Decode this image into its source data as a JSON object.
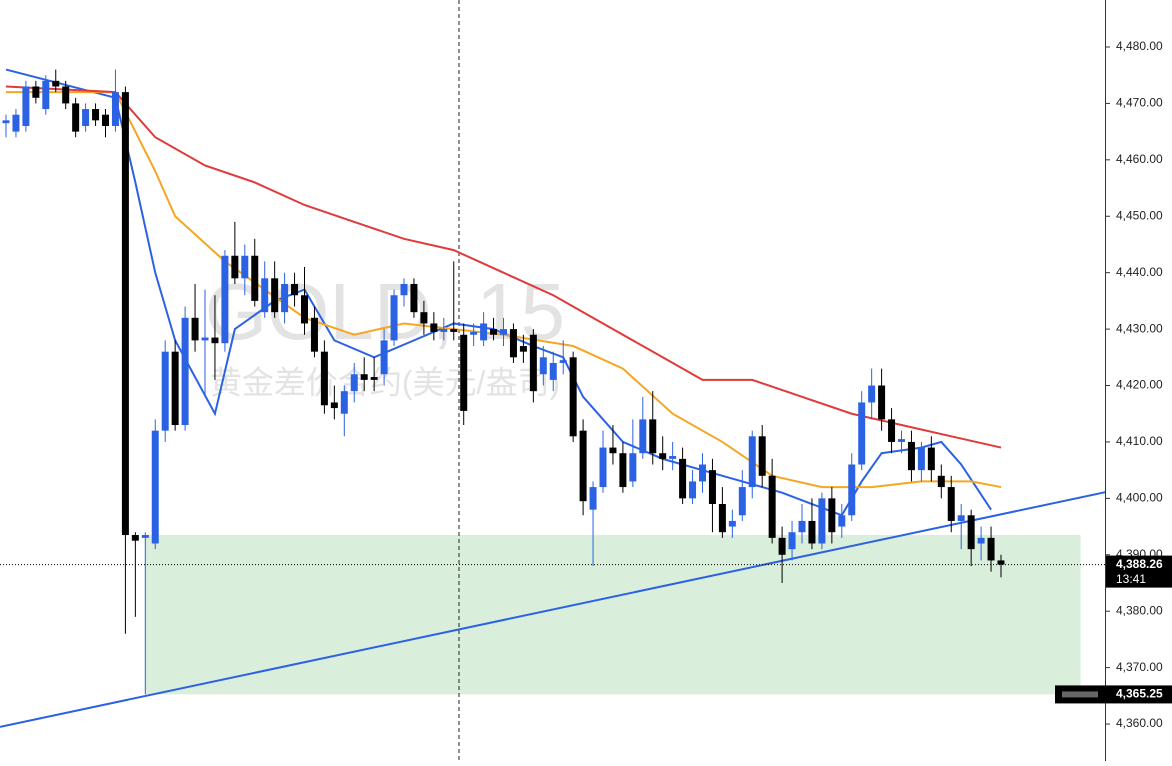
{
  "chart_data": {
    "type": "candlestick",
    "title": "GOLD, 15",
    "subtitle": "黄金差价合约(美元/盎司)",
    "up_color": "#2b62e3",
    "down_color": "#000000",
    "open": [
      4466.5,
      4465,
      4466,
      4473,
      4469,
      4474,
      4473,
      4470,
      4466,
      4469,
      4468,
      4466,
      4472,
      4393.5,
      4393,
      4392,
      4412,
      4426,
      4413,
      4432,
      4428,
      4428.5,
      4427.5,
      4443,
      4439,
      4443,
      4433,
      4439,
      4433,
      4438,
      4436,
      4432,
      4426,
      4417,
      4415,
      4419,
      4422,
      4421.5,
      4422,
      4428,
      4436,
      4438,
      4433,
      4431,
      4429.5,
      4430,
      4429,
      4429,
      4428,
      4430,
      4429,
      4430,
      4427,
      4429,
      4422,
      4421,
      4424,
      4425,
      4412,
      4398,
      4402,
      4409,
      4408,
      4403,
      4408,
      4414,
      4408,
      4407,
      4407,
      4400,
      4403,
      4405,
      4399,
      4395,
      4397,
      4402,
      4411,
      4404,
      4393,
      4391,
      4394,
      4396,
      4392,
      4400,
      4395,
      4397,
      4406,
      4417,
      4420,
      4414,
      4410,
      4410,
      4405,
      4409,
      4404,
      4402,
      4396,
      4397,
      4392,
      4393,
      4389
    ],
    "high": [
      4468,
      4469,
      4474,
      4474,
      4475,
      4476,
      4474,
      4471,
      4470,
      4470,
      4469,
      4476,
      4473,
      4394,
      4394,
      4414,
      4428,
      4428,
      4434,
      4438,
      4437,
      4436,
      4444,
      4449,
      4445,
      4446,
      4442,
      4442,
      4440,
      4440,
      4441,
      4434,
      4428,
      4420,
      4420,
      4424,
      4425,
      4425,
      4430,
      4437,
      4439,
      4439,
      4435,
      4433,
      4432,
      4442,
      4431,
      4431,
      4433,
      4432,
      4432,
      4431,
      4429,
      4430,
      4427,
      4426,
      4428,
      4426,
      4414,
      4403,
      4412,
      4413,
      4410,
      4414,
      4418,
      4419,
      4411,
      4410,
      4409,
      4405,
      4408,
      4407,
      4402,
      4398,
      4405,
      4412,
      4413,
      4407,
      4395,
      4396,
      4399,
      4400,
      4401,
      4402,
      4399,
      4408,
      4419,
      4423,
      4423,
      4416,
      4412,
      4412,
      4410,
      4411,
      4406,
      4404,
      4399,
      4398,
      4395,
      4395,
      4390
    ],
    "low": [
      4464,
      4464,
      4465,
      4470,
      4468,
      4472,
      4469,
      4464,
      4465,
      4466,
      4464,
      4465,
      4376,
      4379,
      4365.25,
      4391,
      4410,
      4412,
      4412,
      4426,
      4418,
      4421,
      4426,
      4438,
      4436,
      4434,
      4432,
      4432,
      4431,
      4434,
      4429,
      4425,
      4415,
      4414,
      4411,
      4417,
      4419,
      4419,
      4420,
      4427,
      4434,
      4432,
      4429,
      4428,
      4428,
      4428,
      4413,
      4427,
      4427,
      4428,
      4427,
      4424,
      4424,
      4417,
      4420,
      4419,
      4422,
      4410,
      4397,
      4388,
      4401,
      4406,
      4401,
      4402,
      4407,
      4406,
      4405,
      4405,
      4399,
      4399,
      4401,
      4394,
      4393,
      4393,
      4396,
      4400,
      4402,
      4392,
      4385,
      4389,
      4392,
      4391,
      4391,
      4392,
      4393,
      4396,
      4405,
      4414,
      4412,
      4408,
      4408,
      4403,
      4403,
      4403,
      4400,
      4394,
      4391,
      4388,
      4389,
      4387,
      4386
    ],
    "close": [
      4467,
      4468,
      4473,
      4471,
      4474,
      4473,
      4470,
      4465,
      4469,
      4467,
      4466,
      4472,
      4393.5,
      4392.5,
      4393.5,
      4412,
      4426,
      4413,
      4432,
      4428,
      4428.5,
      4427.5,
      4443,
      4439,
      4443,
      4435,
      4439,
      4433,
      4438,
      4436,
      4431,
      4426,
      4416.5,
      4416,
      4419,
      4422,
      4421,
      4421,
      4428,
      4436,
      4438,
      4433,
      4431,
      4429.5,
      4430,
      4429.5,
      4415.5,
      4429.5,
      4431,
      4429,
      4430,
      4425,
      4426,
      4419,
      4425,
      4424,
      4424.5,
      4411,
      4399.5,
      4402,
      4409,
      4408,
      4402,
      4408,
      4414,
      4408,
      4407,
      4407.5,
      4400,
      4403,
      4406,
      4399,
      4394,
      4396,
      4402,
      4411,
      4404,
      4393,
      4390,
      4394,
      4396,
      4392,
      4400,
      4394,
      4397,
      4406,
      4417,
      4420,
      4414,
      4410,
      4410.5,
      4405,
      4409,
      4405,
      4402,
      4396,
      4397,
      4391,
      4393,
      4389,
      4388.26
    ],
    "series": [
      {
        "color": "#2b62e3",
        "x": [
          0,
          11,
          13,
          15,
          17,
          21,
          23,
          27,
          30,
          33,
          37,
          41,
          45,
          49,
          53,
          56,
          58,
          62,
          66,
          70,
          74,
          78,
          81,
          84,
          86,
          88,
          92,
          94,
          96,
          99
        ],
        "values": [
          4476,
          4471,
          4456,
          4440,
          4428,
          4415,
          4430,
          4435,
          4437,
          4428,
          4425,
          4428,
          4431,
          4430,
          4427,
          4425,
          4418,
          4410,
          4407,
          4405,
          4403,
          4401,
          4399,
          4397,
          4403,
          4408,
          4409,
          4410,
          4406,
          4398
        ]
      },
      {
        "color": "#f5a623",
        "x": [
          0,
          11,
          15,
          17,
          22,
          30,
          35,
          40,
          45,
          50,
          57,
          62,
          67,
          72,
          77,
          82,
          87,
          92,
          97,
          100
        ],
        "values": [
          4472,
          4472,
          4458,
          4450,
          4442,
          4432,
          4429,
          4431,
          4430,
          4429,
          4427,
          4423,
          4415,
          4410,
          4404,
          4402,
          4402,
          4403,
          4403,
          4402
        ]
      },
      {
        "color": "#e03a3a",
        "x": [
          0,
          11,
          15,
          20,
          25,
          30,
          35,
          40,
          45,
          50,
          55,
          60,
          65,
          70,
          75,
          80,
          85,
          90,
          95,
          100
        ],
        "values": [
          4473,
          4472,
          4464,
          4459,
          4456,
          4452,
          4449,
          4446,
          4444,
          4440,
          4436,
          4431,
          4426,
          4421,
          4421,
          4418,
          4415,
          4413,
          4411,
          4409
        ]
      }
    ],
    "trendline": {
      "color": "#2b62e3",
      "x": [
        -0.6,
        110.5
      ],
      "values": [
        4359.5,
        4401.1
      ]
    },
    "zone": {
      "color": "#d9eedb",
      "x": [
        14,
        108
      ],
      "top": 4393.5,
      "bottom": {
        "value": 4365.25,
        "label": "4,365.25"
      }
    },
    "last_price": {
      "value": 4388.26,
      "label": "4,388.26"
    },
    "countdown": "13:41",
    "ylim": [
      4353.45,
      4488.33
    ],
    "yticks": [
      {
        "value": 4360,
        "label": "4,360.00"
      },
      {
        "value": 4370,
        "label": "4,370.00"
      },
      {
        "value": 4380,
        "label": "4,380.00"
      },
      {
        "value": 4390,
        "label": "4,390.00"
      },
      {
        "value": 4400,
        "label": "4,400.00"
      },
      {
        "value": 4410,
        "label": "4,410.00"
      },
      {
        "value": 4420,
        "label": "4,420.00"
      },
      {
        "value": 4430,
        "label": "4,430.00"
      },
      {
        "value": 4440,
        "label": "4,440.00"
      },
      {
        "value": 4450,
        "label": "4,450.00"
      },
      {
        "value": 4460,
        "label": "4,460.00"
      },
      {
        "value": 4470,
        "label": "4,470.00"
      },
      {
        "value": 4480,
        "label": "4,480.00"
      }
    ],
    "grid": false
  }
}
